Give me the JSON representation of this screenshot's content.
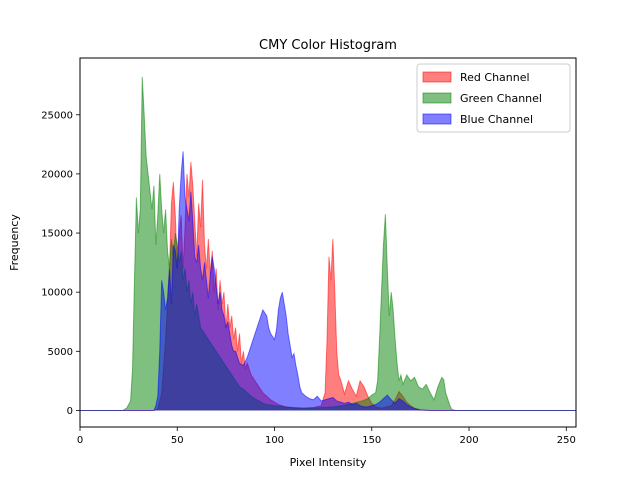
{
  "chart_data": {
    "type": "area",
    "title": "CMY Color Histogram",
    "xlabel": "Pixel Intensity",
    "ylabel": "Frequency",
    "xlim": [
      0,
      255
    ],
    "ylim": [
      -1400,
      29800
    ],
    "xticks": [
      0,
      50,
      100,
      150,
      200,
      250
    ],
    "yticks": [
      0,
      5000,
      10000,
      15000,
      20000,
      25000
    ],
    "grid": false,
    "legend_position": "top-right",
    "series": [
      {
        "name": "Red Channel",
        "color": "#ff0000",
        "points": [
          [
            0,
            0
          ],
          [
            38,
            0
          ],
          [
            40,
            100
          ],
          [
            42,
            1500
          ],
          [
            44,
            6000
          ],
          [
            46,
            12000
          ],
          [
            47,
            17500
          ],
          [
            48,
            19300
          ],
          [
            49,
            16500
          ],
          [
            50,
            12000
          ],
          [
            51,
            15000
          ],
          [
            52,
            16500
          ],
          [
            53,
            12000
          ],
          [
            54,
            15500
          ],
          [
            55,
            20000
          ],
          [
            56,
            18000
          ],
          [
            57,
            21000
          ],
          [
            58,
            19000
          ],
          [
            59,
            16000
          ],
          [
            60,
            13000
          ],
          [
            61,
            17500
          ],
          [
            62,
            15500
          ],
          [
            63,
            19500
          ],
          [
            64,
            14000
          ],
          [
            65,
            12000
          ],
          [
            66,
            14500
          ],
          [
            67,
            11500
          ],
          [
            68,
            13500
          ],
          [
            69,
            10000
          ],
          [
            70,
            12000
          ],
          [
            71,
            8500
          ],
          [
            72,
            11000
          ],
          [
            73,
            9000
          ],
          [
            74,
            10000
          ],
          [
            75,
            7000
          ],
          [
            76,
            9000
          ],
          [
            77,
            7000
          ],
          [
            78,
            8000
          ],
          [
            79,
            6000
          ],
          [
            80,
            7000
          ],
          [
            81,
            5000
          ],
          [
            82,
            6500
          ],
          [
            83,
            4000
          ],
          [
            84,
            5000
          ],
          [
            85,
            3500
          ],
          [
            86,
            4000
          ],
          [
            88,
            3000
          ],
          [
            90,
            2500
          ],
          [
            92,
            2000
          ],
          [
            94,
            1500
          ],
          [
            96,
            1200
          ],
          [
            98,
            900
          ],
          [
            100,
            700
          ],
          [
            102,
            500
          ],
          [
            104,
            400
          ],
          [
            106,
            300
          ],
          [
            110,
            200
          ],
          [
            115,
            200
          ],
          [
            120,
            250
          ],
          [
            124,
            400
          ],
          [
            126,
            1500
          ],
          [
            127,
            6000
          ],
          [
            128,
            13000
          ],
          [
            129,
            11000
          ],
          [
            130,
            14500
          ],
          [
            131,
            10000
          ],
          [
            132,
            5000
          ],
          [
            133,
            3000
          ],
          [
            134,
            2600
          ],
          [
            136,
            1400
          ],
          [
            138,
            2500
          ],
          [
            140,
            1800
          ],
          [
            142,
            1200
          ],
          [
            144,
            2500
          ],
          [
            146,
            2000
          ],
          [
            148,
            1200
          ],
          [
            150,
            600
          ],
          [
            152,
            300
          ],
          [
            155,
            200
          ],
          [
            160,
            400
          ],
          [
            162,
            900
          ],
          [
            164,
            1600
          ],
          [
            166,
            1200
          ],
          [
            168,
            700
          ],
          [
            170,
            400
          ],
          [
            172,
            200
          ],
          [
            175,
            50
          ],
          [
            180,
            0
          ],
          [
            255,
            0
          ]
        ]
      },
      {
        "name": "Green Channel",
        "color": "#008000",
        "points": [
          [
            0,
            0
          ],
          [
            22,
            0
          ],
          [
            24,
            200
          ],
          [
            26,
            800
          ],
          [
            27,
            3500
          ],
          [
            28,
            11000
          ],
          [
            29,
            18000
          ],
          [
            30,
            15000
          ],
          [
            31,
            17000
          ],
          [
            32,
            28200
          ],
          [
            33,
            25000
          ],
          [
            34,
            21500
          ],
          [
            35,
            20000
          ],
          [
            36,
            18500
          ],
          [
            37,
            17000
          ],
          [
            38,
            19000
          ],
          [
            39,
            14000
          ],
          [
            40,
            16500
          ],
          [
            41,
            20000
          ],
          [
            42,
            17000
          ],
          [
            43,
            15000
          ],
          [
            44,
            17000
          ],
          [
            45,
            13500
          ],
          [
            46,
            12000
          ],
          [
            47,
            14500
          ],
          [
            48,
            13000
          ],
          [
            49,
            15000
          ],
          [
            50,
            14000
          ],
          [
            51,
            12500
          ],
          [
            52,
            13500
          ],
          [
            53,
            11000
          ],
          [
            54,
            12000
          ],
          [
            55,
            10000
          ],
          [
            56,
            11000
          ],
          [
            57,
            9000
          ],
          [
            58,
            10000
          ],
          [
            59,
            8000
          ],
          [
            60,
            9000
          ],
          [
            62,
            7000
          ],
          [
            64,
            6500
          ],
          [
            66,
            6000
          ],
          [
            68,
            5500
          ],
          [
            70,
            5000
          ],
          [
            72,
            4500
          ],
          [
            74,
            4000
          ],
          [
            76,
            3500
          ],
          [
            78,
            3000
          ],
          [
            80,
            2500
          ],
          [
            82,
            2000
          ],
          [
            84,
            1800
          ],
          [
            86,
            1500
          ],
          [
            88,
            1200
          ],
          [
            90,
            1000
          ],
          [
            92,
            800
          ],
          [
            94,
            600
          ],
          [
            96,
            500
          ],
          [
            100,
            400
          ],
          [
            105,
            300
          ],
          [
            110,
            250
          ],
          [
            115,
            200
          ],
          [
            120,
            200
          ],
          [
            125,
            250
          ],
          [
            130,
            300
          ],
          [
            135,
            400
          ],
          [
            140,
            600
          ],
          [
            145,
            800
          ],
          [
            148,
            1000
          ],
          [
            150,
            1300
          ],
          [
            152,
            1500
          ],
          [
            153,
            2500
          ],
          [
            154,
            6000
          ],
          [
            155,
            10000
          ],
          [
            156,
            14000
          ],
          [
            157,
            16600
          ],
          [
            158,
            12000
          ],
          [
            159,
            8000
          ],
          [
            160,
            10000
          ],
          [
            161,
            8500
          ],
          [
            162,
            6000
          ],
          [
            163,
            4000
          ],
          [
            164,
            2500
          ],
          [
            165,
            3000
          ],
          [
            166,
            2200
          ],
          [
            168,
            3000
          ],
          [
            170,
            2500
          ],
          [
            172,
            2800
          ],
          [
            174,
            2000
          ],
          [
            176,
            1800
          ],
          [
            178,
            2200
          ],
          [
            180,
            1500
          ],
          [
            182,
            900
          ],
          [
            184,
            2000
          ],
          [
            186,
            2800
          ],
          [
            187,
            2600
          ],
          [
            188,
            1500
          ],
          [
            190,
            500
          ],
          [
            191,
            100
          ],
          [
            193,
            0
          ],
          [
            255,
            0
          ]
        ]
      },
      {
        "name": "Blue Channel",
        "color": "#0000ff",
        "points": [
          [
            0,
            0
          ],
          [
            38,
            0
          ],
          [
            39,
            400
          ],
          [
            40,
            1200
          ],
          [
            41,
            5000
          ],
          [
            42,
            11000
          ],
          [
            43,
            10000
          ],
          [
            44,
            8500
          ],
          [
            45,
            9500
          ],
          [
            46,
            12000
          ],
          [
            47,
            9000
          ],
          [
            48,
            14000
          ],
          [
            49,
            13500
          ],
          [
            50,
            12000
          ],
          [
            51,
            17000
          ],
          [
            52,
            20000
          ],
          [
            53,
            21900
          ],
          [
            54,
            18000
          ],
          [
            55,
            17000
          ],
          [
            56,
            16000
          ],
          [
            57,
            18500
          ],
          [
            58,
            16000
          ],
          [
            59,
            13000
          ],
          [
            60,
            12500
          ],
          [
            61,
            14000
          ],
          [
            62,
            12000
          ],
          [
            63,
            11000
          ],
          [
            64,
            12500
          ],
          [
            65,
            11000
          ],
          [
            66,
            9500
          ],
          [
            67,
            11500
          ],
          [
            68,
            13000
          ],
          [
            69,
            12000
          ],
          [
            70,
            10500
          ],
          [
            71,
            9000
          ],
          [
            72,
            10000
          ],
          [
            73,
            8500
          ],
          [
            74,
            8000
          ],
          [
            75,
            7000
          ],
          [
            76,
            7500
          ],
          [
            77,
            6500
          ],
          [
            78,
            5500
          ],
          [
            79,
            5000
          ],
          [
            80,
            5000
          ],
          [
            82,
            4000
          ],
          [
            84,
            3800
          ],
          [
            86,
            4500
          ],
          [
            88,
            5500
          ],
          [
            90,
            6500
          ],
          [
            92,
            7500
          ],
          [
            94,
            8500
          ],
          [
            96,
            8000
          ],
          [
            97,
            7000
          ],
          [
            98,
            6500
          ],
          [
            100,
            6000
          ],
          [
            101,
            6800
          ],
          [
            102,
            8500
          ],
          [
            103,
            9500
          ],
          [
            104,
            10000
          ],
          [
            105,
            9000
          ],
          [
            106,
            8000
          ],
          [
            107,
            6500
          ],
          [
            108,
            5500
          ],
          [
            109,
            4500
          ],
          [
            110,
            4800
          ],
          [
            111,
            3800
          ],
          [
            112,
            3000
          ],
          [
            113,
            2000
          ],
          [
            114,
            1500
          ],
          [
            116,
            1200
          ],
          [
            118,
            1000
          ],
          [
            120,
            900
          ],
          [
            122,
            1200
          ],
          [
            124,
            800
          ],
          [
            126,
            900
          ],
          [
            128,
            1000
          ],
          [
            130,
            1100
          ],
          [
            132,
            800
          ],
          [
            134,
            700
          ],
          [
            136,
            600
          ],
          [
            138,
            700
          ],
          [
            140,
            500
          ],
          [
            142,
            600
          ],
          [
            144,
            400
          ],
          [
            146,
            300
          ],
          [
            148,
            300
          ],
          [
            150,
            400
          ],
          [
            152,
            500
          ],
          [
            154,
            700
          ],
          [
            156,
            1000
          ],
          [
            158,
            1300
          ],
          [
            160,
            900
          ],
          [
            162,
            600
          ],
          [
            164,
            1000
          ],
          [
            166,
            800
          ],
          [
            168,
            500
          ],
          [
            170,
            300
          ],
          [
            172,
            150
          ],
          [
            175,
            50
          ],
          [
            180,
            0
          ],
          [
            255,
            0
          ]
        ]
      }
    ]
  }
}
